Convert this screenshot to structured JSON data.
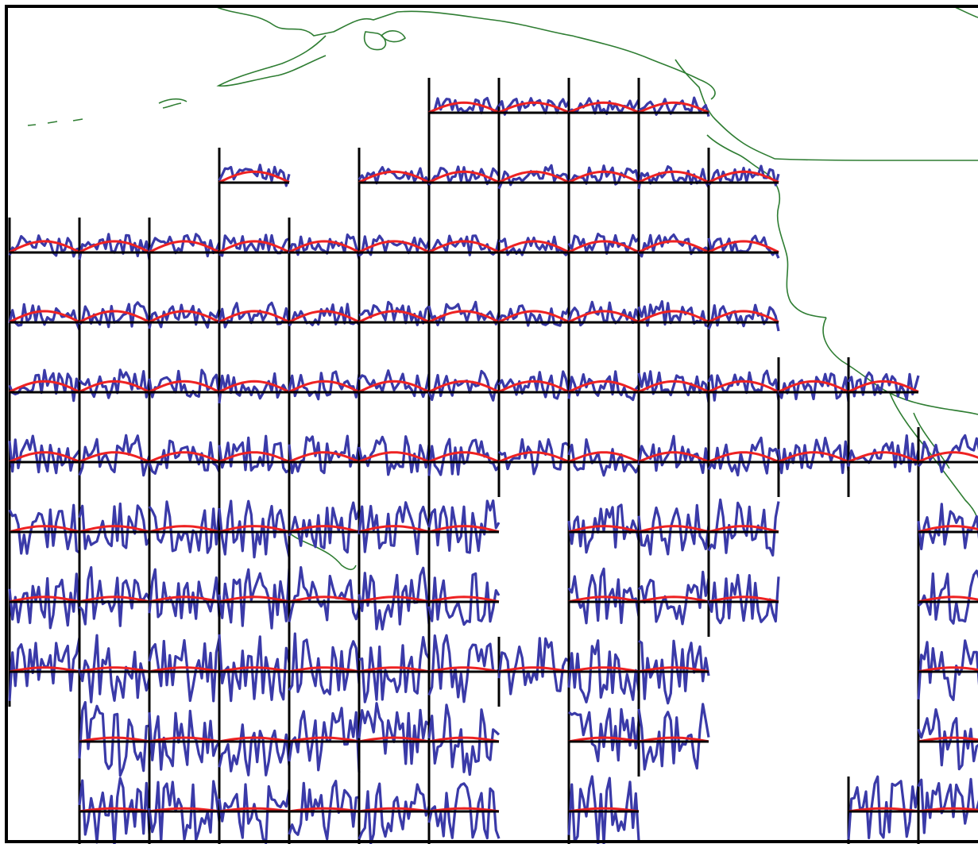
{
  "map": {
    "colors": {
      "background": "#ffffff",
      "frame": "#000000",
      "coastline": "#2e7d32",
      "grid_axis": "#000000",
      "series_observed": "#3a3aa8",
      "series_model": "#ee2222"
    },
    "grid": {
      "col_count": 14,
      "row_count": 11,
      "missing_cells": [
        [
          0,
          0
        ],
        [
          0,
          1
        ],
        [
          0,
          2
        ],
        [
          0,
          3
        ],
        [
          0,
          4
        ],
        [
          0,
          5
        ],
        [
          0,
          10
        ],
        [
          0,
          11
        ],
        [
          0,
          12
        ],
        [
          0,
          13
        ],
        [
          1,
          0
        ],
        [
          1,
          1
        ],
        [
          1,
          2
        ],
        [
          1,
          4
        ],
        [
          1,
          11
        ],
        [
          1,
          12
        ],
        [
          1,
          13
        ],
        [
          2,
          11
        ],
        [
          2,
          12
        ],
        [
          2,
          13
        ],
        [
          3,
          11
        ],
        [
          3,
          12
        ],
        [
          3,
          13
        ],
        [
          4,
          13
        ],
        [
          6,
          7
        ],
        [
          6,
          11
        ],
        [
          6,
          12
        ],
        [
          7,
          7
        ],
        [
          7,
          11
        ],
        [
          7,
          12
        ],
        [
          8,
          10
        ],
        [
          8,
          11
        ],
        [
          8,
          12
        ],
        [
          9,
          0
        ],
        [
          9,
          7
        ],
        [
          9,
          10
        ],
        [
          9,
          11
        ],
        [
          9,
          12
        ],
        [
          10,
          0
        ],
        [
          10,
          7
        ],
        [
          10,
          9
        ],
        [
          10,
          10
        ],
        [
          10,
          11
        ]
      ],
      "row_amplitude": [
        0.72,
        0.78,
        0.8,
        0.8,
        0.78,
        0.7,
        0.42,
        0.35,
        0.3,
        0.28,
        0.22
      ],
      "noise_scale": [
        0.35,
        0.35,
        0.4,
        0.45,
        0.55,
        0.7,
        1.0,
        1.1,
        1.2,
        1.25,
        1.25
      ]
    }
  }
}
